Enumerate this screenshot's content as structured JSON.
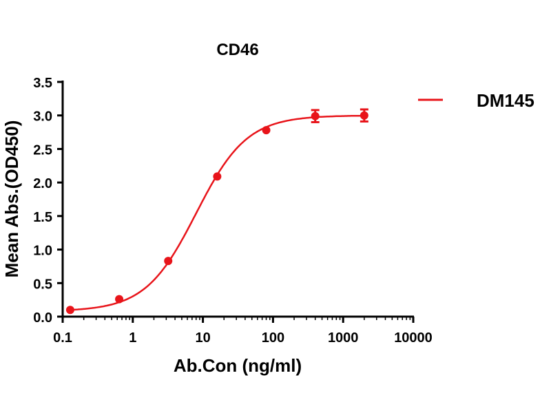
{
  "chart_data": {
    "type": "scatter",
    "title": "CD46",
    "xlabel": "Ab.Con (ng/ml)",
    "ylabel": "Mean Abs.(OD450)",
    "xscale": "log",
    "xlim": [
      0.1,
      10000
    ],
    "ylim": [
      0,
      3.5
    ],
    "xticks": [
      "0.1",
      "1",
      "10",
      "100",
      "1000",
      "10000"
    ],
    "xtick_values": [
      0.1,
      1,
      10,
      100,
      1000,
      10000
    ],
    "yticks": [
      "0.0",
      "0.5",
      "1.0",
      "1.5",
      "2.0",
      "2.5",
      "3.0",
      "3.5"
    ],
    "ytick_values": [
      0,
      0.5,
      1.0,
      1.5,
      2.0,
      2.5,
      3.0,
      3.5
    ],
    "grid": false,
    "legend_position": "top-right",
    "series": [
      {
        "name": "DM145",
        "color": "#e8141a",
        "x": [
          0.128,
          0.64,
          3.2,
          16,
          80,
          400,
          2000
        ],
        "y": [
          0.1,
          0.26,
          0.83,
          2.09,
          2.78,
          2.99,
          3.0
        ],
        "error": [
          0.01,
          0.02,
          0.02,
          0.02,
          0.02,
          0.09,
          0.09
        ],
        "fit": {
          "model": "4PL",
          "bottom": 0.08,
          "top": 3.0,
          "ec50": 8,
          "hill": 1.2
        }
      }
    ]
  }
}
